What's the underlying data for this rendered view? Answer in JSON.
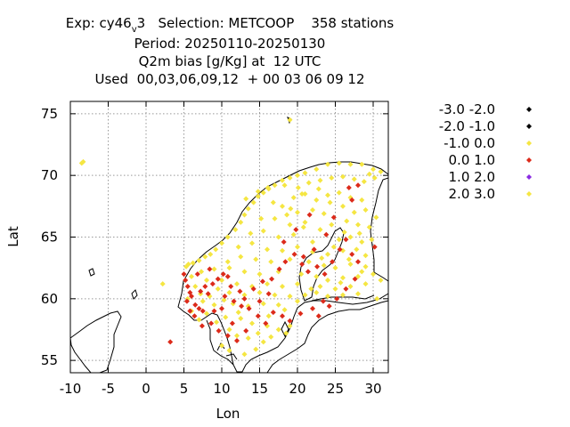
{
  "title": {
    "exp_label": "Exp: cy46",
    "exp_sub": "v",
    "exp_rest": "3   Selection: METCOOP    358 stations",
    "line2": "Period: 20250110-20250130",
    "line3": "Q2m bias [g/Kg] at  12 UTC",
    "line4": "Used  00,03,06,09,12  + 00 03 06 09 12"
  },
  "chart_data": {
    "type": "scatter",
    "xlabel": "Lon",
    "ylabel": "Lat",
    "xlim": [
      -10,
      32
    ],
    "ylim": [
      54,
      76
    ],
    "xticks": [
      -10,
      -5,
      0,
      5,
      10,
      15,
      20,
      25,
      30
    ],
    "yticks": [
      55,
      60,
      65,
      70,
      75
    ],
    "grid": true,
    "legend_position": "right",
    "legend": [
      {
        "label": "-3.0 -2.0",
        "color": "#000000"
      },
      {
        "label": "-2.0 -1.0",
        "color": "#000000"
      },
      {
        "label": "-1.0 0.0",
        "color": "#f5e642"
      },
      {
        "label": "0.0 1.0",
        "color": "#dc2a1a"
      },
      {
        "label": "1.0 2.0",
        "color": "#8a2be2"
      },
      {
        "label": "2.0 3.0",
        "color": "#f5e642"
      }
    ],
    "series": [
      {
        "color": "#f5e642",
        "points": [
          [
            -8.5,
            71.0
          ],
          [
            -8.3,
            71.1
          ],
          [
            19.0,
            74.5
          ],
          [
            2.2,
            61.2
          ],
          [
            5.3,
            62.6
          ],
          [
            5.6,
            62.8
          ],
          [
            6.2,
            62.9
          ],
          [
            7.0,
            63.1
          ],
          [
            7.8,
            63.4
          ],
          [
            8.5,
            63.6
          ],
          [
            9.2,
            64.0
          ],
          [
            10.0,
            64.5
          ],
          [
            10.8,
            65.0
          ],
          [
            11.8,
            65.6
          ],
          [
            12.5,
            66.2
          ],
          [
            13.0,
            66.8
          ],
          [
            13.5,
            67.3
          ],
          [
            14.2,
            67.8
          ],
          [
            14.8,
            68.3
          ],
          [
            15.5,
            68.6
          ],
          [
            16.2,
            68.9
          ],
          [
            17.0,
            69.2
          ],
          [
            18.0,
            69.6
          ],
          [
            19.0,
            69.8
          ],
          [
            20.0,
            70.0
          ],
          [
            21.0,
            70.2
          ],
          [
            22.5,
            70.5
          ],
          [
            24.0,
            70.9
          ],
          [
            25.5,
            71.0
          ],
          [
            27.0,
            70.9
          ],
          [
            28.5,
            70.9
          ],
          [
            30.0,
            70.5
          ],
          [
            31.0,
            70.3
          ],
          [
            29.5,
            70.1
          ],
          [
            13.2,
            68.1
          ],
          [
            14.8,
            68.7
          ],
          [
            16.1,
            69.0
          ],
          [
            18.3,
            69.2
          ],
          [
            20.1,
            69.0
          ],
          [
            21.5,
            69.4
          ],
          [
            23.0,
            69.6
          ],
          [
            24.5,
            69.8
          ],
          [
            26.0,
            69.9
          ],
          [
            27.5,
            69.7
          ],
          [
            28.8,
            69.5
          ],
          [
            30.2,
            69.8
          ],
          [
            19.5,
            68.2
          ],
          [
            21.0,
            68.5
          ],
          [
            22.5,
            68.0
          ],
          [
            24.0,
            68.4
          ],
          [
            25.5,
            68.6
          ],
          [
            27.0,
            68.2
          ],
          [
            28.5,
            68.0
          ],
          [
            18.0,
            67.5
          ],
          [
            20.0,
            67.0
          ],
          [
            22.0,
            67.2
          ],
          [
            23.5,
            66.9
          ],
          [
            26.0,
            67.5
          ],
          [
            27.5,
            67.0
          ],
          [
            29.0,
            67.2
          ],
          [
            17.0,
            66.5
          ],
          [
            19.0,
            66.0
          ],
          [
            21.0,
            66.2
          ],
          [
            24.5,
            66.0
          ],
          [
            26.5,
            66.3
          ],
          [
            28.0,
            66.0
          ],
          [
            29.5,
            65.8
          ],
          [
            15.5,
            65.5
          ],
          [
            17.5,
            65.0
          ],
          [
            19.5,
            65.2
          ],
          [
            23.0,
            65.6
          ],
          [
            25.5,
            64.8
          ],
          [
            27.0,
            65.0
          ],
          [
            28.5,
            64.6
          ],
          [
            14.0,
            64.5
          ],
          [
            16.0,
            64.0
          ],
          [
            18.0,
            63.9
          ],
          [
            20.0,
            64.2
          ],
          [
            22.0,
            63.8
          ],
          [
            24.0,
            63.6
          ],
          [
            26.0,
            63.9
          ],
          [
            29.0,
            63.5
          ],
          [
            12.5,
            63.4
          ],
          [
            14.5,
            63.2
          ],
          [
            16.5,
            63.0
          ],
          [
            19.0,
            63.2
          ],
          [
            21.5,
            63.0
          ],
          [
            23.5,
            62.7
          ],
          [
            25.0,
            62.5
          ],
          [
            27.0,
            62.8
          ],
          [
            29.0,
            62.6
          ],
          [
            11.0,
            62.5
          ],
          [
            13.0,
            62.2
          ],
          [
            15.0,
            62.0
          ],
          [
            17.5,
            62.2
          ],
          [
            20.5,
            62.0
          ],
          [
            22.5,
            61.8
          ],
          [
            24.0,
            61.5
          ],
          [
            26.0,
            61.7
          ],
          [
            28.0,
            61.8
          ],
          [
            30.0,
            62.0
          ],
          [
            10.0,
            61.5
          ],
          [
            12.0,
            61.2
          ],
          [
            14.0,
            61.0
          ],
          [
            16.0,
            61.2
          ],
          [
            18.0,
            61.0
          ],
          [
            20.0,
            61.2
          ],
          [
            23.0,
            61.0
          ],
          [
            25.0,
            60.8
          ],
          [
            27.0,
            61.0
          ],
          [
            29.0,
            61.2
          ],
          [
            6.5,
            61.0
          ],
          [
            8.0,
            61.5
          ],
          [
            9.5,
            60.8
          ],
          [
            11.0,
            60.5
          ],
          [
            13.0,
            60.3
          ],
          [
            15.0,
            60.5
          ],
          [
            17.0,
            60.3
          ],
          [
            19.0,
            60.2
          ],
          [
            21.0,
            60.3
          ],
          [
            22.5,
            60.5
          ],
          [
            24.0,
            60.2
          ],
          [
            26.0,
            60.3
          ],
          [
            28.0,
            60.4
          ],
          [
            5.5,
            60.0
          ],
          [
            7.5,
            59.8
          ],
          [
            9.0,
            59.5
          ],
          [
            11.5,
            59.6
          ],
          [
            13.5,
            59.4
          ],
          [
            15.5,
            59.6
          ],
          [
            17.5,
            59.5
          ],
          [
            20.0,
            59.8
          ],
          [
            6.0,
            59.0
          ],
          [
            8.0,
            58.8
          ],
          [
            10.5,
            58.5
          ],
          [
            12.5,
            58.4
          ],
          [
            14.0,
            58.0
          ],
          [
            16.0,
            57.8
          ],
          [
            17.5,
            57.5
          ],
          [
            19.0,
            57.8
          ],
          [
            11.0,
            57.5
          ],
          [
            12.0,
            57.0
          ],
          [
            13.5,
            56.8
          ],
          [
            15.5,
            56.5
          ],
          [
            10.0,
            56.2
          ],
          [
            11.0,
            55.8
          ],
          [
            13.0,
            55.5
          ],
          [
            14.5,
            55.9
          ],
          [
            16.5,
            56.9
          ],
          [
            18.5,
            57.2
          ],
          [
            30.5,
            60.0
          ],
          [
            31.0,
            61.5
          ],
          [
            28.5,
            62.2
          ],
          [
            27.8,
            64.0
          ],
          [
            26.8,
            63.2
          ],
          [
            25.7,
            61.3
          ],
          [
            22.0,
            64.6
          ],
          [
            20.8,
            65.8
          ],
          [
            18.6,
            66.8
          ],
          [
            16.8,
            67.8
          ],
          [
            15.2,
            66.5
          ],
          [
            13.8,
            65.3
          ],
          [
            12.2,
            64.2
          ],
          [
            10.8,
            63.0
          ],
          [
            9.0,
            62.4
          ],
          [
            7.3,
            62.2
          ],
          [
            6.0,
            61.8
          ],
          [
            7.2,
            60.4
          ],
          [
            8.4,
            60.2
          ],
          [
            10.3,
            59.9
          ],
          [
            12.2,
            58.9
          ],
          [
            9.3,
            58.1
          ],
          [
            7.0,
            58.3
          ],
          [
            14.8,
            57.2
          ],
          [
            16.2,
            58.6
          ],
          [
            18.3,
            59.1
          ],
          [
            21.8,
            60.8
          ],
          [
            23.2,
            63.3
          ],
          [
            24.8,
            64.2
          ],
          [
            26.2,
            65.4
          ],
          [
            28.2,
            65.3
          ],
          [
            29.8,
            64.8
          ],
          [
            30.4,
            66.6
          ],
          [
            24.3,
            67.8
          ],
          [
            22.8,
            68.9
          ],
          [
            20.6,
            68.5
          ],
          [
            19.1,
            67.3
          ]
        ]
      },
      {
        "color": "#dc2a1a",
        "points": [
          [
            3.2,
            56.5
          ],
          [
            5.0,
            62.0
          ],
          [
            5.2,
            61.5
          ],
          [
            5.5,
            61.0
          ],
          [
            5.8,
            60.5
          ],
          [
            6.0,
            60.2
          ],
          [
            5.4,
            59.8
          ],
          [
            6.5,
            59.5
          ],
          [
            7.0,
            59.2
          ],
          [
            7.5,
            59.0
          ],
          [
            5.8,
            59.0
          ],
          [
            6.4,
            58.6
          ],
          [
            7.2,
            60.6
          ],
          [
            7.8,
            61.0
          ],
          [
            8.2,
            60.4
          ],
          [
            8.8,
            61.2
          ],
          [
            9.5,
            61.6
          ],
          [
            10.2,
            62.0
          ],
          [
            10.8,
            61.8
          ],
          [
            11.2,
            61.0
          ],
          [
            10.4,
            60.2
          ],
          [
            11.6,
            59.8
          ],
          [
            12.4,
            60.6
          ],
          [
            13.0,
            60.0
          ],
          [
            13.6,
            59.2
          ],
          [
            14.2,
            60.8
          ],
          [
            15.4,
            61.4
          ],
          [
            16.6,
            61.6
          ],
          [
            17.6,
            62.4
          ],
          [
            18.4,
            63.0
          ],
          [
            19.6,
            63.6
          ],
          [
            20.6,
            62.8
          ],
          [
            21.4,
            62.2
          ],
          [
            22.6,
            62.6
          ],
          [
            23.6,
            62.0
          ],
          [
            24.6,
            63.0
          ],
          [
            25.6,
            64.0
          ],
          [
            26.4,
            64.8
          ],
          [
            27.2,
            63.6
          ],
          [
            28.0,
            63.0
          ],
          [
            27.6,
            61.6
          ],
          [
            26.4,
            60.8
          ],
          [
            25.2,
            60.0
          ],
          [
            23.4,
            59.8
          ],
          [
            22.0,
            59.2
          ],
          [
            20.4,
            58.8
          ],
          [
            19.0,
            58.2
          ],
          [
            18.0,
            58.6
          ],
          [
            16.8,
            58.9
          ],
          [
            15.8,
            58.0
          ],
          [
            14.8,
            58.6
          ],
          [
            13.2,
            57.4
          ],
          [
            12.0,
            56.6
          ],
          [
            10.8,
            57.0
          ],
          [
            9.6,
            57.4
          ],
          [
            8.6,
            58.0
          ],
          [
            9.0,
            59.0
          ],
          [
            10.0,
            59.2
          ],
          [
            11.4,
            58.0
          ],
          [
            26.8,
            69.0
          ],
          [
            28.0,
            69.2
          ],
          [
            27.2,
            68.0
          ],
          [
            24.8,
            66.6
          ],
          [
            23.8,
            65.2
          ],
          [
            21.6,
            66.8
          ],
          [
            19.8,
            65.6
          ],
          [
            18.2,
            64.6
          ],
          [
            20.8,
            63.4
          ],
          [
            22.2,
            64.0
          ],
          [
            30.2,
            64.2
          ],
          [
            16.2,
            60.4
          ],
          [
            15.0,
            59.8
          ],
          [
            8.4,
            62.4
          ],
          [
            6.8,
            62.0
          ],
          [
            22.8,
            58.6
          ],
          [
            24.2,
            59.4
          ],
          [
            7.4,
            57.8
          ],
          [
            12.6,
            59.4
          ]
        ]
      }
    ]
  }
}
